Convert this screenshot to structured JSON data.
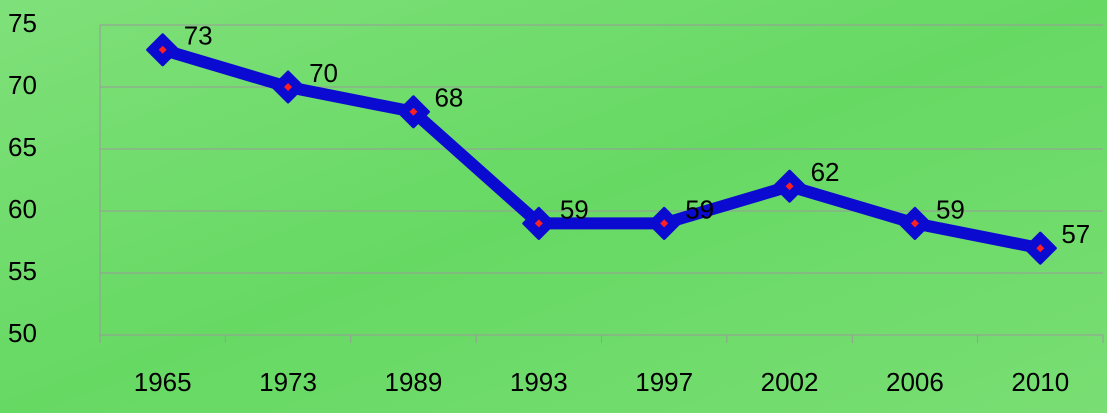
{
  "chart_data": {
    "type": "line",
    "categories": [
      "1965",
      "1973",
      "1989",
      "1993",
      "1997",
      "2002",
      "2006",
      "2010"
    ],
    "series": [
      {
        "color": "#0a0ad0",
        "values": [
          73,
          70,
          68,
          59,
          59,
          62,
          59,
          57
        ]
      }
    ],
    "ylim": [
      50,
      75
    ],
    "yticks": [
      50,
      55,
      60,
      65,
      70,
      75
    ],
    "grid": true
  }
}
